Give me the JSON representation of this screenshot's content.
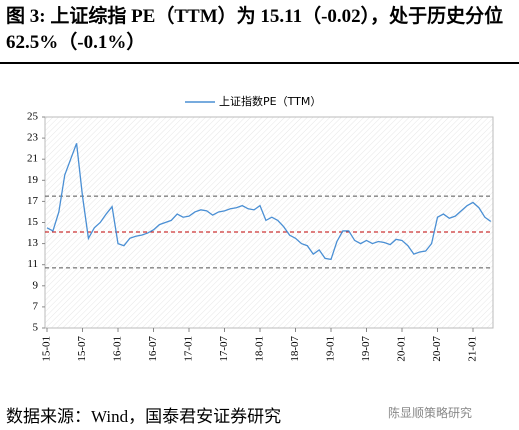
{
  "title": "图 3: 上证综指 PE（TTM）为 15.11（-0.02），处于历史分位 62.5%（-0.1%）",
  "source": "数据来源：Wind，国泰君安证券研究",
  "watermark": "陈显顺策略研究",
  "chart_data": {
    "type": "line",
    "categories": [
      "15-01",
      "15-02",
      "15-03",
      "15-04",
      "15-05",
      "15-06",
      "15-07",
      "15-08",
      "15-09",
      "15-10",
      "15-11",
      "15-12",
      "16-01",
      "16-02",
      "16-03",
      "16-04",
      "16-05",
      "16-06",
      "16-07",
      "16-08",
      "16-09",
      "16-10",
      "16-11",
      "16-12",
      "17-01",
      "17-02",
      "17-03",
      "17-04",
      "17-05",
      "17-06",
      "17-07",
      "17-08",
      "17-09",
      "17-10",
      "17-11",
      "17-12",
      "18-01",
      "18-02",
      "18-03",
      "18-04",
      "18-05",
      "18-06",
      "18-07",
      "18-08",
      "18-09",
      "18-10",
      "18-11",
      "18-12",
      "19-01",
      "19-02",
      "19-03",
      "19-04",
      "19-05",
      "19-06",
      "19-07",
      "19-08",
      "19-09",
      "19-10",
      "19-11",
      "19-12",
      "20-01",
      "20-02",
      "20-03",
      "20-04",
      "20-05",
      "20-06",
      "20-07",
      "20-08",
      "20-09",
      "20-10",
      "20-11",
      "20-12",
      "21-01",
      "21-02",
      "21-03",
      "21-04"
    ],
    "xticks": [
      "15-01",
      "15-07",
      "16-01",
      "16-07",
      "17-01",
      "17-07",
      "18-01",
      "18-07",
      "19-01",
      "19-07",
      "20-01",
      "20-07",
      "21-01"
    ],
    "series": [
      {
        "name": "上证指数PE（TTM）",
        "color": "#4a8fd4",
        "values": [
          14.5,
          14.2,
          16,
          19.5,
          21,
          22.5,
          17.5,
          13.5,
          14.5,
          15,
          15.8,
          16.5,
          13,
          12.8,
          13.5,
          13.7,
          13.8,
          14,
          14.3,
          14.8,
          15,
          15.2,
          15.8,
          15.5,
          15.6,
          16,
          16.2,
          16.1,
          15.7,
          16,
          16.1,
          16.3,
          16.4,
          16.6,
          16.3,
          16.2,
          16.6,
          15.2,
          15.5,
          15.2,
          14.6,
          13.8,
          13.5,
          13,
          12.8,
          12,
          12.4,
          11.6,
          11.5,
          13.2,
          14.2,
          14.2,
          13.3,
          13,
          13.3,
          13,
          13.2,
          13.1,
          12.9,
          13.4,
          13.3,
          12.8,
          12,
          12.2,
          12.3,
          13,
          15.5,
          15.8,
          15.4,
          15.6,
          16.1,
          16.6,
          16.9,
          16.4,
          15.5,
          15.1
        ]
      }
    ],
    "hlines": [
      {
        "value": 17.5,
        "color": "#555555"
      },
      {
        "value": 14.1,
        "color": "#c00000"
      },
      {
        "value": 10.7,
        "color": "#555555"
      }
    ],
    "ylim": [
      5,
      25
    ],
    "yticks": [
      5,
      7,
      9,
      11,
      13,
      15,
      17,
      19,
      21,
      23,
      25
    ]
  }
}
